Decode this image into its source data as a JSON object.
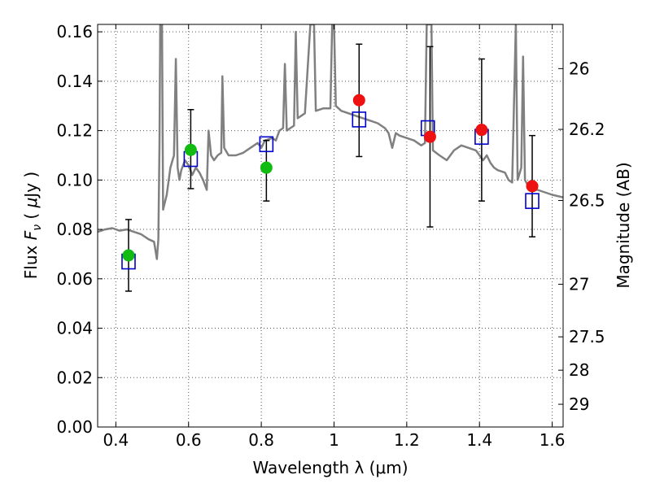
{
  "chart_data": {
    "type": "scatter",
    "xlabel": "Wavelength  λ (μm)",
    "ylabel_left": {
      "prefix": "Flux  ",
      "var": "F",
      "sub": "ν",
      "unit_open": "  (  ",
      "mu": "μ",
      "unit_rest": "Jy )"
    },
    "ylabel_right": "Magnitude (AB)",
    "xlim": [
      0.35,
      1.63
    ],
    "ylim": [
      0.0,
      0.163
    ],
    "x_ticks": [
      {
        "value": 0.4,
        "label": "0.4"
      },
      {
        "value": 0.6,
        "label": "0.6"
      },
      {
        "value": 0.8,
        "label": "0.8"
      },
      {
        "value": 1.0,
        "label": "1"
      },
      {
        "value": 1.2,
        "label": "1.2"
      },
      {
        "value": 1.4,
        "label": "1.4"
      },
      {
        "value": 1.6,
        "label": "1.6"
      }
    ],
    "y_ticks": [
      {
        "value": 0.0,
        "label": "0.00"
      },
      {
        "value": 0.02,
        "label": "0.02"
      },
      {
        "value": 0.04,
        "label": "0.04"
      },
      {
        "value": 0.06,
        "label": "0.06"
      },
      {
        "value": 0.08,
        "label": "0.08"
      },
      {
        "value": 0.1,
        "label": "0.10"
      },
      {
        "value": 0.12,
        "label": "0.12"
      },
      {
        "value": 0.14,
        "label": "0.14"
      },
      {
        "value": 0.16,
        "label": "0.16"
      }
    ],
    "right_ticks": [
      {
        "flux": 0.1451,
        "label": "26"
      },
      {
        "flux": 0.1205,
        "label": "26.2"
      },
      {
        "flux": 0.0917,
        "label": "26.5"
      },
      {
        "flux": 0.0578,
        "label": "27"
      },
      {
        "flux": 0.0365,
        "label": "27.5"
      },
      {
        "flux": 0.023,
        "label": "28"
      },
      {
        "flux": 0.0092,
        "label": "29"
      }
    ],
    "grid": true,
    "colors": {
      "spectrum": "#808080",
      "green": "#11bb11",
      "red": "#ee1111",
      "box": "#0000cc",
      "error": "#000000",
      "grid": "#555555"
    },
    "observed": [
      {
        "x": 0.435,
        "y": 0.0695,
        "yerr_low": 0.055,
        "yerr_high": 0.084,
        "color": "green"
      },
      {
        "x": 0.606,
        "y": 0.1122,
        "yerr_low": 0.0965,
        "yerr_high": 0.1285,
        "color": "green"
      },
      {
        "x": 0.814,
        "y": 0.105,
        "yerr_low": 0.0915,
        "yerr_high": 0.116,
        "color": "green"
      },
      {
        "x": 1.069,
        "y": 0.1323,
        "yerr_low": 0.1095,
        "yerr_high": 0.155,
        "color": "red"
      },
      {
        "x": 1.264,
        "y": 0.1175,
        "yerr_low": 0.081,
        "yerr_high": 0.154,
        "color": "red"
      },
      {
        "x": 1.406,
        "y": 0.1203,
        "yerr_low": 0.0915,
        "yerr_high": 0.149,
        "color": "red"
      },
      {
        "x": 1.545,
        "y": 0.0975,
        "yerr_low": 0.077,
        "yerr_high": 0.118,
        "color": "red"
      }
    ],
    "model": [
      {
        "x": 0.435,
        "y": 0.067
      },
      {
        "x": 0.606,
        "y": 0.1085
      },
      {
        "x": 0.814,
        "y": 0.1145
      },
      {
        "x": 1.069,
        "y": 0.1245
      },
      {
        "x": 1.258,
        "y": 0.121
      },
      {
        "x": 1.406,
        "y": 0.1175
      },
      {
        "x": 1.545,
        "y": 0.0915
      }
    ],
    "spectrum": [
      [
        0.35,
        0.079
      ],
      [
        0.37,
        0.08
      ],
      [
        0.39,
        0.0805
      ],
      [
        0.41,
        0.0795
      ],
      [
        0.43,
        0.08
      ],
      [
        0.45,
        0.079
      ],
      [
        0.47,
        0.078
      ],
      [
        0.49,
        0.076
      ],
      [
        0.505,
        0.075
      ],
      [
        0.513,
        0.068
      ],
      [
        0.517,
        0.076
      ],
      [
        0.52,
        0.115
      ],
      [
        0.522,
        0.163
      ],
      [
        0.527,
        0.163
      ],
      [
        0.53,
        0.088
      ],
      [
        0.54,
        0.094
      ],
      [
        0.55,
        0.105
      ],
      [
        0.56,
        0.11
      ],
      [
        0.565,
        0.149
      ],
      [
        0.57,
        0.105
      ],
      [
        0.575,
        0.1
      ],
      [
        0.58,
        0.104
      ],
      [
        0.59,
        0.108
      ],
      [
        0.6,
        0.106
      ],
      [
        0.61,
        0.102
      ],
      [
        0.62,
        0.105
      ],
      [
        0.63,
        0.103
      ],
      [
        0.64,
        0.1
      ],
      [
        0.65,
        0.096
      ],
      [
        0.655,
        0.12
      ],
      [
        0.662,
        0.11
      ],
      [
        0.67,
        0.108
      ],
      [
        0.68,
        0.11
      ],
      [
        0.69,
        0.111
      ],
      [
        0.693,
        0.142
      ],
      [
        0.698,
        0.113
      ],
      [
        0.71,
        0.11
      ],
      [
        0.73,
        0.11
      ],
      [
        0.75,
        0.111
      ],
      [
        0.77,
        0.113
      ],
      [
        0.79,
        0.115
      ],
      [
        0.8,
        0.113
      ],
      [
        0.81,
        0.116
      ],
      [
        0.83,
        0.117
      ],
      [
        0.84,
        0.116
      ],
      [
        0.85,
        0.12
      ],
      [
        0.86,
        0.121
      ],
      [
        0.865,
        0.147
      ],
      [
        0.87,
        0.12
      ],
      [
        0.88,
        0.121
      ],
      [
        0.89,
        0.122
      ],
      [
        0.895,
        0.16
      ],
      [
        0.9,
        0.125
      ],
      [
        0.92,
        0.127
      ],
      [
        0.935,
        0.163
      ],
      [
        0.94,
        0.163
      ],
      [
        0.945,
        0.163
      ],
      [
        0.95,
        0.128
      ],
      [
        0.97,
        0.129
      ],
      [
        0.99,
        0.129
      ],
      [
        0.995,
        0.163
      ],
      [
        1.0,
        0.163
      ],
      [
        1.005,
        0.13
      ],
      [
        1.02,
        0.128
      ],
      [
        1.04,
        0.127
      ],
      [
        1.06,
        0.126
      ],
      [
        1.08,
        0.125
      ],
      [
        1.1,
        0.124
      ],
      [
        1.12,
        0.123
      ],
      [
        1.14,
        0.121
      ],
      [
        1.15,
        0.119
      ],
      [
        1.16,
        0.113
      ],
      [
        1.17,
        0.119
      ],
      [
        1.18,
        0.118
      ],
      [
        1.2,
        0.117
      ],
      [
        1.22,
        0.116
      ],
      [
        1.24,
        0.114
      ],
      [
        1.25,
        0.115
      ],
      [
        1.255,
        0.163
      ],
      [
        1.268,
        0.163
      ],
      [
        1.272,
        0.112
      ],
      [
        1.29,
        0.11
      ],
      [
        1.31,
        0.108
      ],
      [
        1.33,
        0.112
      ],
      [
        1.35,
        0.114
      ],
      [
        1.37,
        0.113
      ],
      [
        1.39,
        0.112
      ],
      [
        1.41,
        0.108
      ],
      [
        1.42,
        0.11
      ],
      [
        1.43,
        0.107
      ],
      [
        1.44,
        0.105
      ],
      [
        1.45,
        0.104
      ],
      [
        1.47,
        0.103
      ],
      [
        1.48,
        0.1
      ],
      [
        1.49,
        0.099
      ],
      [
        1.5,
        0.163
      ],
      [
        1.505,
        0.1
      ],
      [
        1.515,
        0.105
      ],
      [
        1.52,
        0.15
      ],
      [
        1.525,
        0.1
      ],
      [
        1.54,
        0.096
      ],
      [
        1.56,
        0.096
      ],
      [
        1.58,
        0.095
      ],
      [
        1.6,
        0.094
      ],
      [
        1.63,
        0.093
      ]
    ]
  }
}
